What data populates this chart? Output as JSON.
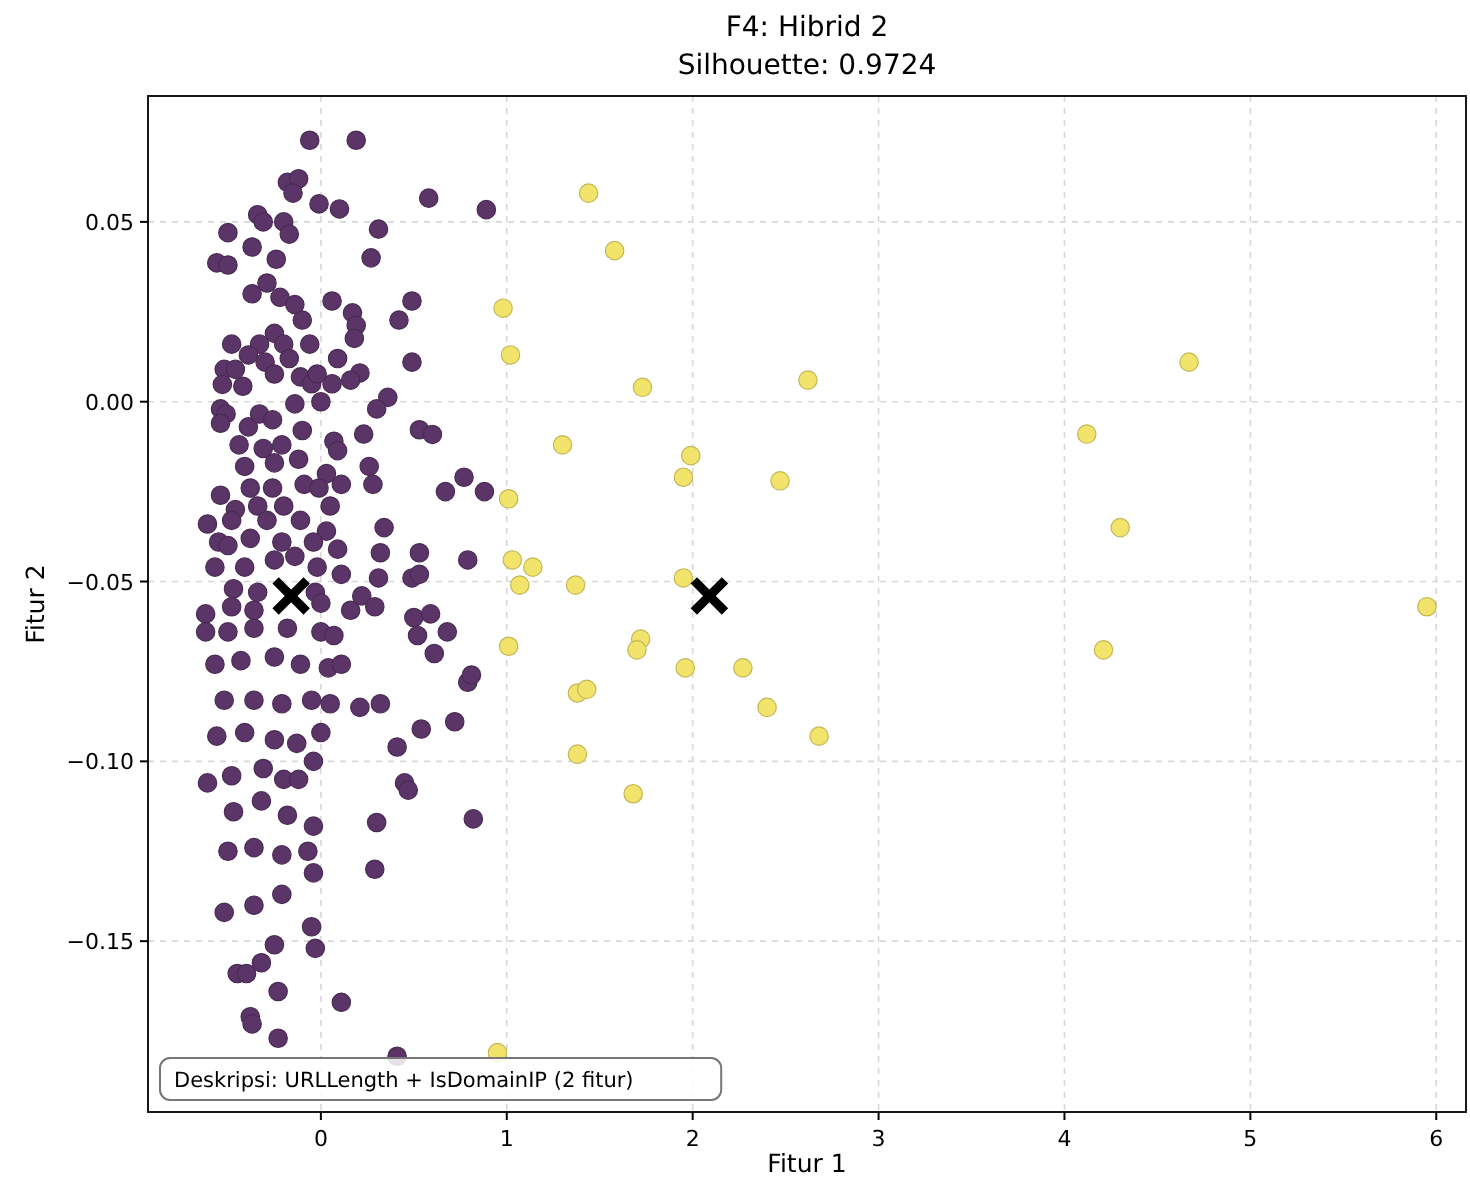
{
  "chart_data": {
    "type": "scatter",
    "title": "F4: Hibrid 2",
    "subtitle": "Silhouette: 0.9724",
    "xlabel": "Fitur 1",
    "ylabel": "Fitur 2",
    "xlim": [
      -0.93,
      6.16
    ],
    "ylim": [
      -0.1975,
      0.085
    ],
    "xticks": [
      0,
      1,
      2,
      3,
      4,
      5,
      6
    ],
    "yticks": [
      {
        "value": 0.05,
        "label": "0.05"
      },
      {
        "value": 0,
        "label": "0.00"
      },
      {
        "value": -0.05,
        "label": "−0.05"
      },
      {
        "value": -0.1,
        "label": "−0.10"
      },
      {
        "value": -0.15,
        "label": "−0.15"
      }
    ],
    "grid": true,
    "annotations": [
      "Deskripsi: URLLength + IsDomainIP (2 fitur)"
    ],
    "series": [
      {
        "color": "#5c3568",
        "marker": "circle",
        "x": [
          -0.06,
          0.19,
          0.58,
          0.89,
          -0.18,
          -0.12,
          -0.15,
          -0.01,
          0.1,
          -0.34,
          -0.31,
          -0.5,
          -0.2,
          -0.17,
          0.31,
          0.27,
          -0.37,
          -0.24,
          -0.56,
          -0.5,
          -0.29,
          -0.37,
          -0.22,
          -0.14,
          0.06,
          0.17,
          0.49,
          0.42,
          -0.1,
          0.19,
          0.18,
          -0.25,
          -0.2,
          -0.48,
          -0.33,
          -0.06,
          -0.39,
          -0.3,
          -0.17,
          0.09,
          0.49,
          -0.52,
          -0.46,
          -0.25,
          -0.11,
          -0.05,
          0.06,
          -0.02,
          0.21,
          0.16,
          -0.53,
          -0.42,
          0.36,
          0.3,
          -0.54,
          -0.51,
          -0.54,
          -0.39,
          -0.33,
          -0.26,
          -0.14,
          0.0,
          0.53,
          0.6,
          0.23,
          0.07,
          0.09,
          -0.44,
          -0.31,
          -0.21,
          -0.1,
          0.26,
          -0.41,
          -0.25,
          -0.12,
          0.03,
          -0.54,
          -0.38,
          -0.26,
          -0.09,
          -0.01,
          0.11,
          0.28,
          0.67,
          0.77,
          0.88,
          -0.46,
          -0.34,
          -0.2,
          0.05,
          -0.61,
          -0.48,
          -0.29,
          -0.11,
          0.03,
          0.34,
          -0.55,
          -0.5,
          -0.38,
          -0.21,
          -0.04,
          0.09,
          0.32,
          0.53,
          -0.57,
          -0.41,
          -0.25,
          -0.14,
          -0.02,
          0.79,
          0.11,
          0.31,
          0.49,
          0.53,
          -0.47,
          -0.34,
          -0.03,
          -0.62,
          -0.48,
          -0.36,
          0.0,
          0.16,
          0.22,
          0.29,
          0.5,
          0.59,
          -0.62,
          -0.5,
          -0.36,
          -0.18,
          0.0,
          0.07,
          0.52,
          0.61,
          0.68,
          -0.57,
          -0.43,
          -0.25,
          -0.11,
          0.04,
          0.11,
          0.79,
          0.81,
          -0.52,
          -0.36,
          -0.21,
          -0.05,
          0.05,
          0.21,
          0.32,
          0.72,
          0.54,
          -0.56,
          -0.41,
          -0.25,
          -0.13,
          0.0,
          0.41,
          -0.04,
          -0.61,
          -0.48,
          -0.31,
          -0.2,
          -0.12,
          0.45,
          0.47,
          -0.47,
          -0.32,
          -0.18,
          -0.04,
          0.82,
          0.3,
          -0.5,
          -0.36,
          -0.21,
          -0.07,
          0.29,
          -0.04,
          -0.52,
          -0.36,
          -0.21,
          -0.32,
          -0.25,
          -0.05,
          -0.03,
          -0.45,
          -0.4,
          -0.23,
          0.11,
          -0.38,
          -0.37,
          -0.23,
          0.41,
          null
        ],
        "values": [
          0.0727,
          0.0727,
          0.0566,
          0.0534,
          0.061,
          0.062,
          0.058,
          0.055,
          0.0536,
          0.052,
          0.05,
          0.047,
          0.05,
          0.0466,
          0.048,
          0.04,
          0.043,
          0.0396,
          0.0386,
          0.038,
          0.033,
          0.03,
          0.029,
          0.027,
          0.028,
          0.0247,
          0.028,
          0.0227,
          0.0227,
          0.0212,
          0.0176,
          0.019,
          0.016,
          0.016,
          0.016,
          0.016,
          0.013,
          0.011,
          0.012,
          0.012,
          0.011,
          0.009,
          0.009,
          0.0077,
          0.0069,
          0.005,
          0.005,
          0.0077,
          0.008,
          0.006,
          0.0048,
          0.0043,
          0.0012,
          -0.002,
          -0.002,
          -0.0034,
          -0.006,
          -0.007,
          -0.0034,
          -0.005,
          -0.0006,
          0.0,
          -0.0078,
          -0.0091,
          -0.009,
          -0.011,
          -0.0136,
          -0.012,
          -0.013,
          -0.012,
          -0.008,
          -0.018,
          -0.018,
          -0.017,
          -0.016,
          -0.02,
          -0.026,
          -0.024,
          -0.024,
          -0.023,
          -0.024,
          -0.023,
          -0.023,
          -0.025,
          -0.021,
          -0.025,
          -0.03,
          -0.029,
          -0.029,
          -0.029,
          -0.034,
          -0.033,
          -0.033,
          -0.033,
          -0.036,
          -0.035,
          -0.039,
          -0.04,
          -0.038,
          -0.039,
          -0.039,
          -0.041,
          -0.042,
          -0.042,
          -0.046,
          -0.046,
          -0.044,
          -0.043,
          -0.046,
          -0.044,
          -0.048,
          -0.049,
          -0.049,
          -0.048,
          -0.052,
          -0.053,
          -0.053,
          -0.059,
          -0.057,
          -0.058,
          -0.056,
          -0.058,
          -0.054,
          -0.057,
          -0.06,
          -0.059,
          -0.064,
          -0.064,
          -0.063,
          -0.063,
          -0.064,
          -0.065,
          -0.065,
          -0.07,
          -0.064,
          -0.073,
          -0.072,
          -0.071,
          -0.073,
          -0.074,
          -0.073,
          -0.078,
          -0.076,
          -0.083,
          -0.083,
          -0.084,
          -0.083,
          -0.084,
          -0.085,
          -0.084,
          -0.089,
          -0.091,
          -0.093,
          -0.092,
          -0.094,
          -0.095,
          -0.092,
          -0.096,
          -0.1,
          -0.106,
          -0.104,
          -0.102,
          -0.105,
          -0.105,
          -0.106,
          -0.108,
          -0.114,
          -0.111,
          -0.115,
          -0.118,
          -0.116,
          -0.117,
          -0.125,
          -0.124,
          -0.126,
          -0.125,
          -0.13,
          -0.131,
          -0.142,
          -0.14,
          -0.137,
          -0.156,
          -0.151,
          -0.146,
          -0.152,
          -0.159,
          -0.159,
          -0.164,
          -0.167,
          -0.171,
          -0.173,
          -0.177,
          -0.182,
          null
        ]
      },
      {
        "color": "#f2e36b",
        "marker": "circle",
        "x": [
          1.44,
          1.58,
          0.98,
          1.02,
          1.73,
          2.62,
          4.67,
          1.3,
          1.99,
          1.95,
          2.47,
          4.12,
          1.01,
          4.3,
          1.03,
          1.14,
          1.07,
          1.37,
          1.95,
          5.95,
          1.01,
          1.72,
          1.7,
          4.21,
          1.96,
          2.27,
          1.38,
          1.43,
          2.4,
          2.68,
          1.38,
          1.68,
          0.95
        ],
        "values": [
          0.058,
          0.042,
          0.026,
          0.013,
          0.004,
          0.006,
          0.011,
          -0.012,
          -0.015,
          -0.021,
          -0.022,
          -0.009,
          -0.027,
          -0.035,
          -0.044,
          -0.046,
          -0.051,
          -0.051,
          -0.049,
          -0.057,
          -0.068,
          -0.066,
          -0.069,
          -0.069,
          -0.074,
          -0.074,
          -0.081,
          -0.08,
          -0.085,
          -0.093,
          -0.098,
          -0.109,
          -0.181
        ]
      },
      {
        "color": "#000000",
        "marker": "cross",
        "x": [
          -0.16,
          2.09
        ],
        "values": [
          -0.054,
          -0.054
        ]
      }
    ]
  }
}
